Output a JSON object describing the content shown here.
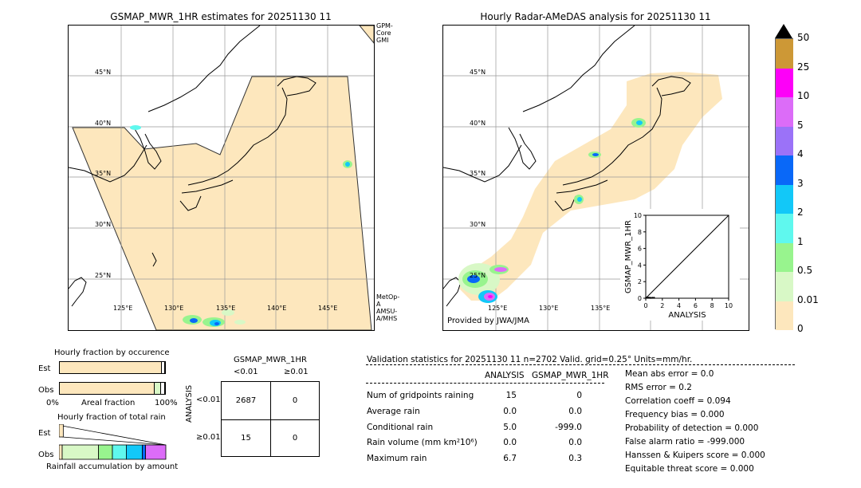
{
  "left_map": {
    "title": "GSMAP_MWR_1HR estimates for 20251130 11",
    "side_label_top": "GPM-Core GMI",
    "side_label_bottom": "MetOp-A AMSU-A/MHS",
    "lat_labels": [
      "45°N",
      "40°N",
      "35°N",
      "30°N",
      "25°N"
    ],
    "lon_labels": [
      "125°E",
      "130°E",
      "135°E",
      "140°E",
      "145°E"
    ]
  },
  "right_map": {
    "title": "Hourly Radar-AMeDAS analysis for 20251130 11",
    "provider": "Provided by JWA/JMA",
    "lat_labels": [
      "45°N",
      "40°N",
      "35°N",
      "30°N",
      "25°N"
    ],
    "lon_labels": [
      "125°E",
      "130°E",
      "135°E"
    ]
  },
  "colorbar": {
    "ticks": [
      "0",
      "0.01",
      "0.5",
      "1",
      "2",
      "3",
      "4",
      "5",
      "10",
      "25",
      "50"
    ],
    "colors": [
      "#fde7bd",
      "#d8f8c6",
      "#98f48e",
      "#5ff8ee",
      "#12c8f8",
      "#0968f8",
      "#9b72f8",
      "#dc6cf8",
      "#fd00f8",
      "#cd9836"
    ],
    "over_color": "#000000"
  },
  "chart_data": [
    {
      "type": "scatter",
      "title": "",
      "xlabel": "ANALYSIS",
      "ylabel": "GSMAP_MWR_1HR",
      "xlim": [
        0,
        10
      ],
      "ylim": [
        0,
        10
      ],
      "xticks": [
        "0",
        "2",
        "4",
        "6",
        "8",
        "10"
      ],
      "yticks": [
        "0",
        "2",
        "4",
        "6",
        "8",
        "10"
      ],
      "diagonal": true,
      "points": [
        [
          0.05,
          0.05
        ],
        [
          0.1,
          0.08
        ],
        [
          0.2,
          0.05
        ],
        [
          0.3,
          0.06
        ],
        [
          0.45,
          0.05
        ],
        [
          0.6,
          0.04
        ],
        [
          0.8,
          0.05
        ],
        [
          1.0,
          0.05
        ]
      ]
    },
    {
      "type": "bar",
      "title": "Hourly fraction by occurence",
      "categories": [
        "Est",
        "Obs"
      ],
      "xlabel": "Areal fraction",
      "x_left_label": "0%",
      "x_right_label": "100%",
      "series": [
        {
          "name": "Est",
          "segments": [
            {
              "color": "#fde7bd",
              "fraction": 0.97
            },
            {
              "color": "#ffffff",
              "fraction": 0.03
            }
          ]
        },
        {
          "name": "Obs",
          "segments": [
            {
              "color": "#fde7bd",
              "fraction": 0.905
            },
            {
              "color": "#d8f8c6",
              "fraction": 0.06
            },
            {
              "color": "#ffffff",
              "fraction": 0.035
            }
          ]
        }
      ]
    },
    {
      "type": "bar",
      "title": "Hourly fraction of total rain",
      "categories": [
        "Est",
        "Obs"
      ],
      "xlabel": "Rainfall accumulation by amount",
      "series": [
        {
          "name": "Est",
          "segments": [
            {
              "color": "#fde7bd",
              "fraction": 0.04
            }
          ]
        },
        {
          "name": "Obs",
          "segments": [
            {
              "color": "#fde7bd",
              "fraction": 0.03
            },
            {
              "color": "#d8f8c6",
              "fraction": 0.34
            },
            {
              "color": "#98f48e",
              "fraction": 0.13
            },
            {
              "color": "#5ff8ee",
              "fraction": 0.13
            },
            {
              "color": "#12c8f8",
              "fraction": 0.15
            },
            {
              "color": "#0968f8",
              "fraction": 0.03
            },
            {
              "color": "#dc6cf8",
              "fraction": 0.19
            }
          ]
        }
      ]
    },
    {
      "type": "table",
      "title": "GSMAP_MWR_1HR",
      "col_headers": [
        "<0.01",
        "≥0.01"
      ],
      "row_axis_label": "ANALYSIS",
      "row_headers": [
        "<0.01",
        "≥0.01"
      ],
      "cells": [
        [
          "2687",
          "0"
        ],
        [
          "15",
          "0"
        ]
      ]
    }
  ],
  "validation": {
    "header": "Validation statistics for 20251130 11  n=2702 Valid. grid=0.25° Units=mm/hr.",
    "col_analysis": "ANALYSIS",
    "col_gsmap": "GSMAP_MWR_1HR",
    "rows": [
      {
        "label": "Num of gridpoints raining",
        "analysis": "15",
        "gsmap": "0"
      },
      {
        "label": "Average rain",
        "analysis": "0.0",
        "gsmap": "0.0"
      },
      {
        "label": "Conditional rain",
        "analysis": "5.0",
        "gsmap": "-999.0"
      },
      {
        "label": "Rain volume (mm km²10⁶)",
        "analysis": "0.0",
        "gsmap": "0.0"
      },
      {
        "label": "Maximum rain",
        "analysis": "6.7",
        "gsmap": "0.3"
      }
    ],
    "scores": [
      "Mean abs error =    0.0",
      "RMS error =    0.2",
      "Correlation coeff =  0.094",
      "Frequency bias =  0.000",
      "Probability of detection =  0.000",
      "False alarm ratio = -999.000",
      "Hanssen & Kuipers score =  0.000",
      "Equitable threat score =  0.000"
    ]
  }
}
